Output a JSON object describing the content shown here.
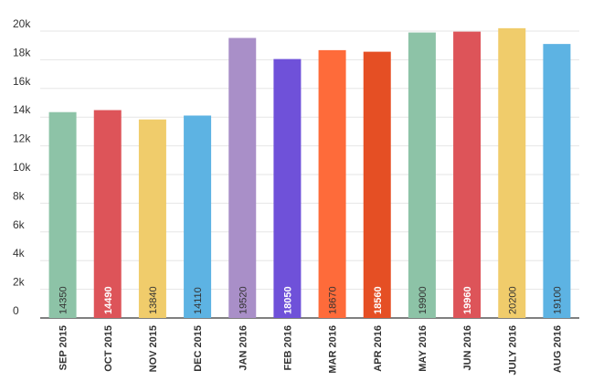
{
  "chart_data": {
    "type": "bar",
    "categories": [
      "SEP 2015",
      "OCT 2015",
      "NOV 2015",
      "DEC 2015",
      "JAN 2016",
      "FEB 2016",
      "MAR 2016",
      "APR 2016",
      "MAY 2016",
      "JUN 2016",
      "JULY 2016",
      "AUG 2016"
    ],
    "values": [
      14350,
      14490,
      13840,
      14110,
      19520,
      18050,
      18670,
      18560,
      19900,
      19960,
      20200,
      19100
    ],
    "value_labels": [
      "14350",
      "14490",
      "13840",
      "14110",
      "19520",
      "18050",
      "18670",
      "18560",
      "19900",
      "19960",
      "20200",
      "19100"
    ],
    "colors": [
      "#8dc3a7",
      "#dd5459",
      "#f0cc6b",
      "#5db3e3",
      "#a98fc8",
      "#6f51d9",
      "#fe6b3a",
      "#e54f24",
      "#8dc3a7",
      "#dd5459",
      "#f0cc6b",
      "#5db3e3"
    ],
    "value_label_colors": [
      "#333333",
      "#ffffff",
      "#333333",
      "#333333",
      "#333333",
      "#ffffff",
      "#333333",
      "#ffffff",
      "#333333",
      "#ffffff",
      "#333333",
      "#333333"
    ],
    "value_label_weights": [
      "normal",
      "bold",
      "normal",
      "normal",
      "normal",
      "bold",
      "normal",
      "bold",
      "normal",
      "bold",
      "normal",
      "normal"
    ],
    "y_ticks": [
      0,
      2000,
      4000,
      6000,
      8000,
      10000,
      12000,
      14000,
      16000,
      18000,
      20000
    ],
    "y_tick_labels": [
      "0",
      "2k",
      "4k",
      "6k",
      "8k",
      "10k",
      "12k",
      "14k",
      "16k",
      "18k",
      "20k"
    ],
    "ylim": [
      0,
      20000
    ],
    "grid": true,
    "legend": "none",
    "title": "",
    "xlabel": "",
    "ylabel": ""
  }
}
